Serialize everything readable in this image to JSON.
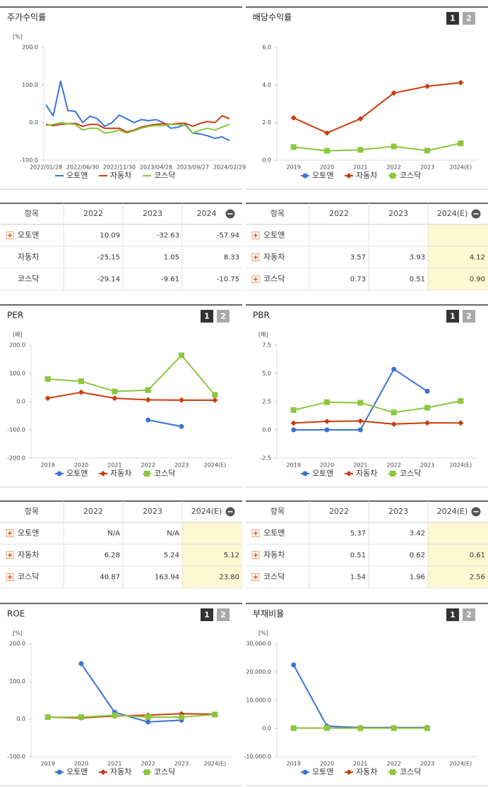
{
  "chart_data": [
    {
      "type": "line",
      "title": "주가수익률",
      "unit_label": "[%]",
      "x": [
        "2022/01/28",
        null,
        null,
        null,
        null,
        "2022/06/30",
        null,
        null,
        null,
        null,
        "2022/11/30",
        null,
        null,
        null,
        null,
        "2023/04/28",
        null,
        null,
        null,
        null,
        "2023/09/27",
        null,
        null,
        null,
        null,
        "2024/02/29"
      ],
      "series": [
        {
          "name": "오토앤",
          "color": "#3a72d8",
          "values": [
            47,
            18,
            110,
            32,
            30,
            0,
            17,
            10,
            -10,
            0,
            20,
            10,
            0,
            8,
            5,
            8,
            0,
            -15,
            -12,
            -5,
            -28,
            -30,
            -35,
            -42,
            -38,
            -48
          ]
        },
        {
          "name": "자동차",
          "color": "#cc3a0a",
          "values": [
            -5,
            -8,
            -5,
            -3,
            -2,
            -10,
            -5,
            -5,
            -15,
            -15,
            -15,
            -25,
            -20,
            -12,
            -8,
            -5,
            -3,
            -5,
            -2,
            -2,
            -10,
            -2,
            3,
            0,
            18,
            10
          ]
        },
        {
          "name": "코스닥",
          "color": "#8cc63e",
          "values": [
            -8,
            -5,
            0,
            -3,
            -5,
            -20,
            -15,
            -15,
            -28,
            -25,
            -20,
            -28,
            -22,
            -15,
            -10,
            -8,
            -8,
            -5,
            -5,
            -8,
            -28,
            -20,
            -15,
            -20,
            -12,
            -5
          ]
        }
      ],
      "ylim": [
        -100,
        200
      ],
      "yticks": [
        {
          "value": -100,
          "label": "-100.0"
        },
        {
          "value": 0,
          "label": "0.0"
        },
        {
          "value": 100,
          "label": "100.0"
        },
        {
          "value": 200,
          "label": "200.0"
        }
      ]
    },
    {
      "type": "line",
      "title": "배당수익률",
      "buttons": [
        "1",
        "2"
      ],
      "categories": [
        "2019",
        "2020",
        "2021",
        "2022",
        "2023",
        "2024(E)"
      ],
      "series": [
        {
          "name": "오토앤",
          "color": "#3a72d8",
          "marker": "circle",
          "values": [
            null,
            null,
            null,
            null,
            null,
            null
          ]
        },
        {
          "name": "자동차",
          "color": "#cc3a0a",
          "marker": "diamond",
          "values": [
            2.25,
            1.45,
            2.2,
            3.57,
            3.93,
            4.12
          ]
        },
        {
          "name": "코스닥",
          "color": "#8cc63e",
          "marker": "square",
          "values": [
            0.7,
            0.5,
            0.55,
            0.73,
            0.51,
            0.9
          ]
        }
      ],
      "ylim": [
        0,
        6
      ],
      "yticks": [
        {
          "value": 0,
          "label": "0.0"
        },
        {
          "value": 2,
          "label": "2.0"
        },
        {
          "value": 4,
          "label": "4.0"
        },
        {
          "value": 6,
          "label": "6.0"
        }
      ]
    },
    {
      "type": "line",
      "title": "PER",
      "unit_label": "[배]",
      "buttons": [
        "1",
        "2"
      ],
      "categories": [
        "2019",
        "2020",
        "2021",
        "2022",
        "2023",
        "2024(E)"
      ],
      "series": [
        {
          "name": "오토앤",
          "color": "#3a72d8",
          "marker": "circle",
          "values": [
            null,
            null,
            null,
            -65,
            -88,
            null
          ]
        },
        {
          "name": "자동차",
          "color": "#cc3a0a",
          "marker": "diamond",
          "values": [
            12,
            33,
            12,
            6.28,
            5.24,
            5.12
          ]
        },
        {
          "name": "코스닥",
          "color": "#8cc63e",
          "marker": "square",
          "values": [
            80,
            72,
            36,
            40.87,
            163.94,
            23.8
          ]
        }
      ],
      "ylim": [
        -200,
        200
      ],
      "yticks": [
        {
          "value": -200,
          "label": "-200.0"
        },
        {
          "value": -100,
          "label": "-100.0"
        },
        {
          "value": 0,
          "label": "0.0"
        },
        {
          "value": 100,
          "label": "100.0"
        },
        {
          "value": 200,
          "label": "200.0"
        }
      ]
    },
    {
      "type": "line",
      "title": "PBR",
      "unit_label": "[배]",
      "buttons": [
        "1",
        "2"
      ],
      "categories": [
        "2019",
        "2020",
        "2021",
        "2022",
        "2023",
        "2024(E)"
      ],
      "series": [
        {
          "name": "오토앤",
          "color": "#3a72d8",
          "marker": "circle",
          "values": [
            0,
            0,
            0,
            5.37,
            3.42,
            null
          ]
        },
        {
          "name": "자동차",
          "color": "#cc3a0a",
          "marker": "diamond",
          "values": [
            0.6,
            0.75,
            0.78,
            0.51,
            0.62,
            0.61
          ]
        },
        {
          "name": "코스닥",
          "color": "#8cc63e",
          "marker": "square",
          "values": [
            1.75,
            2.45,
            2.4,
            1.54,
            1.96,
            2.56
          ]
        }
      ],
      "ylim": [
        -2.5,
        7.5
      ],
      "yticks": [
        -2.5,
        {
          "value": 0,
          "label": "0.0"
        },
        2.5,
        {
          "value": 5,
          "label": "5.0"
        },
        7.5
      ]
    },
    {
      "type": "line",
      "title": "ROE",
      "unit_label": "[%]",
      "buttons": [
        "1",
        "2"
      ],
      "categories": [
        "2019",
        "2020",
        "2021",
        "2022",
        "2023",
        "2024(E)"
      ],
      "series": [
        {
          "name": "오토앤",
          "color": "#3a72d8",
          "marker": "circle",
          "values": [
            null,
            147,
            18,
            -8,
            -3,
            null
          ]
        },
        {
          "name": "자동차",
          "color": "#cc3a0a",
          "marker": "diamond",
          "values": [
            5,
            3,
            8,
            10,
            14,
            13
          ]
        },
        {
          "name": "코스닥",
          "color": "#8cc63e",
          "marker": "square",
          "values": [
            5,
            5,
            10,
            5,
            5,
            12
          ]
        }
      ],
      "ylim": [
        -100,
        200
      ],
      "yticks": [
        {
          "value": -100,
          "label": "-100.0"
        },
        {
          "value": 0,
          "label": "0.0"
        },
        {
          "value": 100,
          "label": "100.0"
        },
        {
          "value": 200,
          "label": "200.0"
        }
      ]
    },
    {
      "type": "line",
      "title": "부채비율",
      "unit_label": "[%]",
      "buttons": [
        "1",
        "2"
      ],
      "categories": [
        "2019",
        "2020",
        "2021",
        "2022",
        "2023",
        "2024(E)"
      ],
      "series": [
        {
          "name": "오토앤",
          "color": "#3a72d8",
          "marker": "circle",
          "values": [
            22500,
            800,
            300,
            300,
            300,
            null
          ]
        },
        {
          "name": "자동차",
          "color": "#cc3a0a",
          "marker": "diamond",
          "values": [
            120,
            120,
            120,
            120,
            120,
            null
          ]
        },
        {
          "name": "코스닥",
          "color": "#8cc63e",
          "marker": "square",
          "values": [
            100,
            100,
            100,
            100,
            100,
            null
          ]
        }
      ],
      "ylim": [
        -10000,
        30000
      ],
      "yticks": [
        {
          "value": -10000,
          "label": "-10,000.0"
        },
        {
          "value": 0,
          "label": "0.0"
        },
        {
          "value": 10000,
          "label": "10,000.0"
        },
        {
          "value": 20000,
          "label": "20,000.0"
        },
        {
          "value": 30000,
          "label": "30,000.0"
        }
      ]
    }
  ],
  "tables": [
    {
      "headers": [
        "항목",
        "2022",
        "2023",
        "2024"
      ],
      "highlight_last": false,
      "rows": [
        {
          "name": "오토앤",
          "expand": true,
          "values": [
            "10.09",
            "-32.63",
            "-57.94"
          ]
        },
        {
          "name": "자동차",
          "expand": false,
          "values": [
            "-25.15",
            "1.05",
            "8.33"
          ]
        },
        {
          "name": "코스닥",
          "expand": false,
          "values": [
            "-29.14",
            "-9.61",
            "-10.75"
          ]
        }
      ]
    },
    {
      "headers": [
        "항목",
        "2022",
        "2023",
        "2024(E)"
      ],
      "highlight_last": true,
      "rows": [
        {
          "name": "오토앤",
          "expand": true,
          "values": [
            null,
            null,
            null
          ]
        },
        {
          "name": "자동차",
          "expand": true,
          "values": [
            "3.57",
            "3.93",
            "4.12"
          ]
        },
        {
          "name": "코스닥",
          "expand": true,
          "values": [
            "0.73",
            "0.51",
            "0.90"
          ]
        }
      ]
    },
    {
      "headers": [
        "항목",
        "2022",
        "2023",
        "2024(E)"
      ],
      "highlight_last": true,
      "rows": [
        {
          "name": "오토앤",
          "expand": true,
          "values": [
            "N/A",
            "N/A",
            null
          ]
        },
        {
          "name": "자동차",
          "expand": true,
          "values": [
            "6.28",
            "5.24",
            "5.12"
          ]
        },
        {
          "name": "코스닥",
          "expand": true,
          "values": [
            "40.87",
            "163.94",
            "23.80"
          ]
        }
      ]
    },
    {
      "headers": [
        "항목",
        "2022",
        "2023",
        "2024(E)"
      ],
      "highlight_last": true,
      "rows": [
        {
          "name": "오토앤",
          "expand": true,
          "values": [
            "5.37",
            "3.42",
            null
          ]
        },
        {
          "name": "자동차",
          "expand": true,
          "values": [
            "0.51",
            "0.62",
            "0.61"
          ]
        },
        {
          "name": "코스닥",
          "expand": true,
          "values": [
            "1.54",
            "1.96",
            "2.56"
          ]
        }
      ]
    }
  ]
}
